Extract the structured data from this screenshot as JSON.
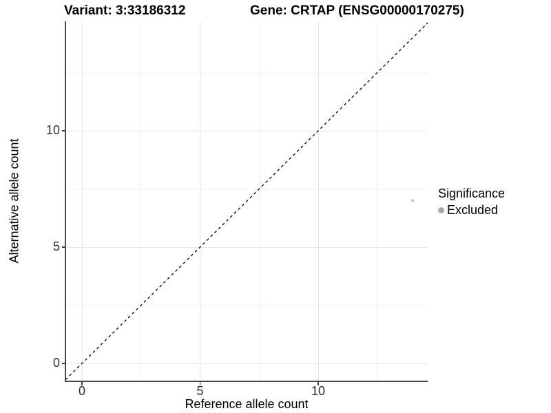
{
  "header": {
    "title_left": "Variant: 3:33186312",
    "title_right": "Gene: CRTAP (ENSG00000170275)"
  },
  "chart_data": {
    "type": "scatter",
    "xlabel": "Reference allele count",
    "ylabel": "Alternative allele count",
    "xlim": [
      -0.7,
      14.7
    ],
    "ylim": [
      -0.7,
      14.7
    ],
    "x_ticks": [
      0,
      5,
      10
    ],
    "y_ticks": [
      0,
      5,
      10
    ],
    "x_tick_labels": [
      "0",
      "5",
      "10"
    ],
    "y_tick_labels": [
      "0",
      "5",
      "10"
    ],
    "x_minor_ticks": [
      2.5,
      7.5,
      12.5
    ],
    "y_minor_ticks": [
      2.5,
      7.5,
      12.5
    ],
    "grid": {
      "show": true,
      "major_color": "#e6e6e6",
      "minor_color": "#f3f3f3"
    },
    "axis_color": "#474747",
    "series": [
      {
        "name": "Excluded",
        "color": "#c5c5c5",
        "point_radius_px": 2.3,
        "points": [
          [
            14,
            7
          ]
        ]
      }
    ],
    "reference_line": {
      "type": "identity y=x",
      "style": "dashed",
      "color": "#000000"
    },
    "legend": {
      "title": "Significance",
      "position": "right",
      "entries": [
        {
          "label": "Excluded",
          "marker_color": "#a8a8a8"
        }
      ]
    }
  }
}
